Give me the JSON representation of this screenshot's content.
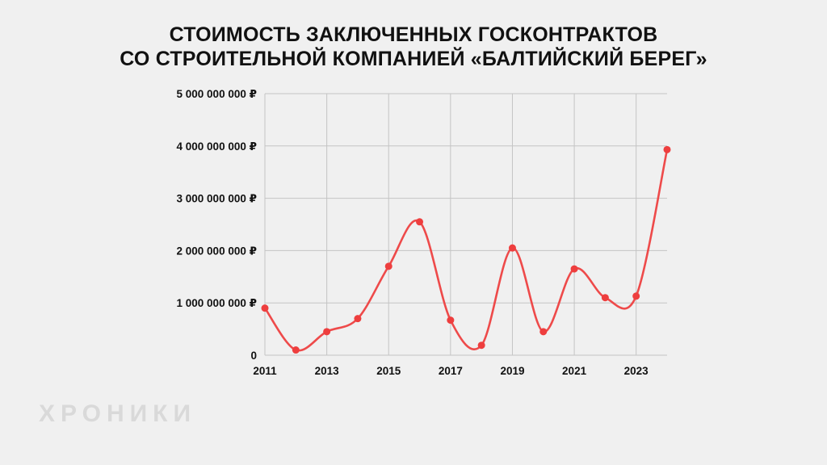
{
  "title_line1": "СТОИМОСТЬ ЗАКЛЮЧЕННЫХ ГОСКОНТРАКТОВ",
  "title_line2": "СО СТРОИТЕЛЬНОЙ КОМПАНИЕЙ «БАЛТИЙСКИЙ БЕРЕГ»",
  "watermark": "ХРОНИКИ",
  "colors": {
    "line": "#ee4a4a",
    "point": "#ee3e3e",
    "grid": "#c4c4c4"
  },
  "chart_data": {
    "type": "line",
    "x": [
      2011,
      2012,
      2013,
      2014,
      2015,
      2016,
      2017,
      2018,
      2019,
      2020,
      2021,
      2022,
      2023,
      2024
    ],
    "values": [
      900000000,
      100000000,
      450000000,
      700000000,
      1700000000,
      2550000000,
      670000000,
      190000000,
      2050000000,
      450000000,
      1650000000,
      1100000000,
      1130000000,
      3930000000
    ],
    "ylim": [
      0,
      5000000000
    ],
    "yticks": [
      0,
      1000000000,
      2000000000,
      3000000000,
      4000000000,
      5000000000
    ],
    "ytick_labels": [
      "0",
      "1 000 000 000 ₽",
      "2 000 000 000 ₽",
      "3 000 000 000 ₽",
      "4 000 000 000 ₽",
      "5 000 000 000 ₽"
    ],
    "xticks": [
      2011,
      2013,
      2015,
      2017,
      2019,
      2021,
      2023
    ],
    "xtick_labels": [
      "2011",
      "2013",
      "2015",
      "2017",
      "2019",
      "2021",
      "2023"
    ],
    "grid": true,
    "legend": "none",
    "smooth": true
  }
}
